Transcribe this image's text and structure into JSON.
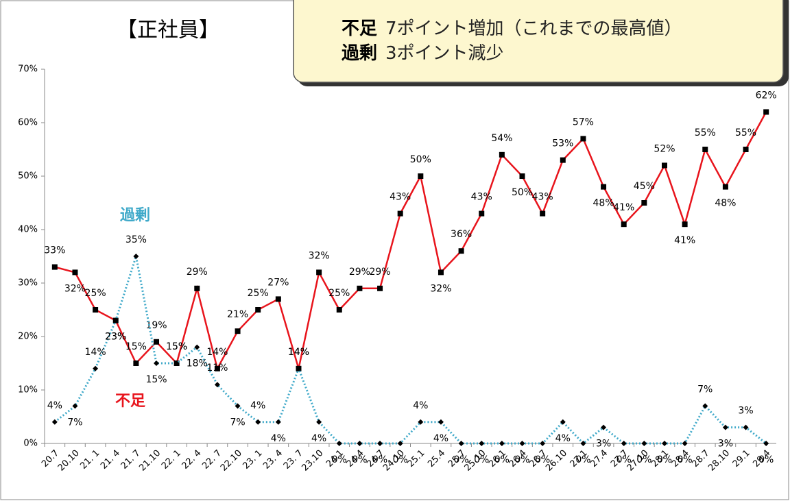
{
  "chart_data": {
    "type": "line",
    "title": "【正社員】",
    "annotations": [
      {
        "label": "不足",
        "text": "7ポイント増加（これまでの最高値）"
      },
      {
        "label": "過剰",
        "text": "3ポイント減少"
      }
    ],
    "categories": [
      "20.7",
      "20.10",
      "21. 1",
      "21. 4",
      "21. 7",
      "21.10",
      "22. 1",
      "22. 4",
      "22. 7",
      "22.10",
      "23. 1",
      "23. 4",
      "23. 7",
      "23.10",
      "24.1",
      "24.4",
      "24.7",
      "24.10",
      "25.1",
      "25.4",
      "25.7",
      "25.10",
      "26.1",
      "26.4",
      "26.7",
      "26.10",
      "27.1",
      "27.4",
      "27.7",
      "27.10",
      "28.1",
      "28.4",
      "28.7",
      "28.10",
      "29.1",
      "29.4"
    ],
    "series": [
      {
        "name": "不足",
        "color": "#e8141c",
        "marker": "square",
        "values": [
          33,
          32,
          25,
          23,
          15,
          19,
          15,
          29,
          14,
          21,
          25,
          27,
          14,
          32,
          25,
          29,
          29,
          43,
          50,
          32,
          36,
          43,
          54,
          50,
          43,
          53,
          57,
          48,
          41,
          45,
          52,
          41,
          55,
          48,
          55,
          62
        ],
        "value_labels": [
          "33%",
          "32%",
          "25%",
          "23%",
          "15%",
          "19%",
          "15%",
          "29%",
          "14%",
          "21%",
          "25%",
          "27%",
          "14%",
          "32%",
          "25%",
          "29%",
          "29%",
          "43%",
          "50%",
          "32%",
          "36%",
          "43%",
          "54%",
          "50%",
          "43%",
          "53%",
          "57%",
          "48%",
          "41%",
          "45%",
          "52%",
          "41%",
          "55%",
          "48%",
          "55%",
          "62%"
        ]
      },
      {
        "name": "過剰",
        "color": "#3fa9c9",
        "marker": "diamond",
        "values": [
          4,
          7,
          14,
          23,
          35,
          15,
          15,
          18,
          11,
          7,
          4,
          4,
          14,
          4,
          0,
          0,
          0,
          0,
          4,
          4,
          0,
          0,
          0,
          0,
          0,
          4,
          0,
          3,
          0,
          0,
          0,
          0,
          7,
          3,
          3,
          0
        ],
        "value_labels": [
          "4%",
          "7%",
          "14%",
          "23%",
          "35%",
          "15%",
          "15%",
          "18%",
          "11%",
          "7%",
          "4%",
          "4%",
          "14%",
          "4%",
          "0%",
          "0%",
          "0%",
          "0%",
          "4%",
          "4%",
          "0%",
          "0%",
          "0%",
          "0%",
          "0%",
          "4%",
          "0%",
          "3%",
          "0%",
          "0%",
          "0%",
          "0%",
          "7%",
          "3%",
          "3%",
          "0%"
        ]
      }
    ],
    "ylim": [
      0,
      70
    ],
    "yticks": [
      {
        "value": 0,
        "label": "0%"
      },
      {
        "value": 10,
        "label": "10%"
      },
      {
        "value": 20,
        "label": "20%"
      },
      {
        "value": 30,
        "label": "30%"
      },
      {
        "value": 40,
        "label": "40%"
      },
      {
        "value": 50,
        "label": "50%"
      },
      {
        "value": 60,
        "label": "60%"
      },
      {
        "value": 70,
        "label": "70%"
      }
    ],
    "grid": false
  }
}
